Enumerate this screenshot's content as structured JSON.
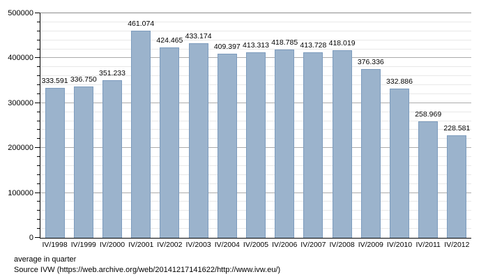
{
  "chart_data": {
    "type": "bar",
    "categories": [
      "IV/1998",
      "IV/1999",
      "IV/2000",
      "IV/2001",
      "IV/2002",
      "IV/2003",
      "IV/2004",
      "IV/2005",
      "IV/2006",
      "IV/2007",
      "IV/2008",
      "IV/2009",
      "IV/2010",
      "IV/2011",
      "IV/2012"
    ],
    "values": [
      333591,
      336750,
      351233,
      461074,
      424465,
      433174,
      409397,
      413313,
      418785,
      413728,
      418019,
      376336,
      332886,
      258969,
      228581
    ],
    "value_labels": [
      "333.591",
      "336.750",
      "351.233",
      "461.074",
      "424.465",
      "433.174",
      "409.397",
      "413.313",
      "418.785",
      "413.728",
      "418.019",
      "376.336",
      "332.886",
      "258.969",
      "228.581"
    ],
    "title": "",
    "xlabel": "",
    "ylabel": "",
    "ylim": [
      0,
      500000
    ],
    "ytick_major_step": 100000,
    "ytick_minor_step": 20000,
    "ytick_labels": [
      "0",
      "100000",
      "200000",
      "300000",
      "400000",
      "500000"
    ],
    "grid": true,
    "legend": false,
    "bar_fill_color": "#9bb3cc",
    "bar_border_color": "#7d9cbe",
    "grid_minor_color": "#e8e8e8",
    "grid_major_color": "#ababab",
    "axis_color": "#000000",
    "top_frame_color": "#8c8c8c"
  },
  "footer": {
    "average_note": "average in quarter",
    "source_note": "Source IVW (https://web.archive.org/web/20141217141622/http://www.ivw.eu/)"
  }
}
